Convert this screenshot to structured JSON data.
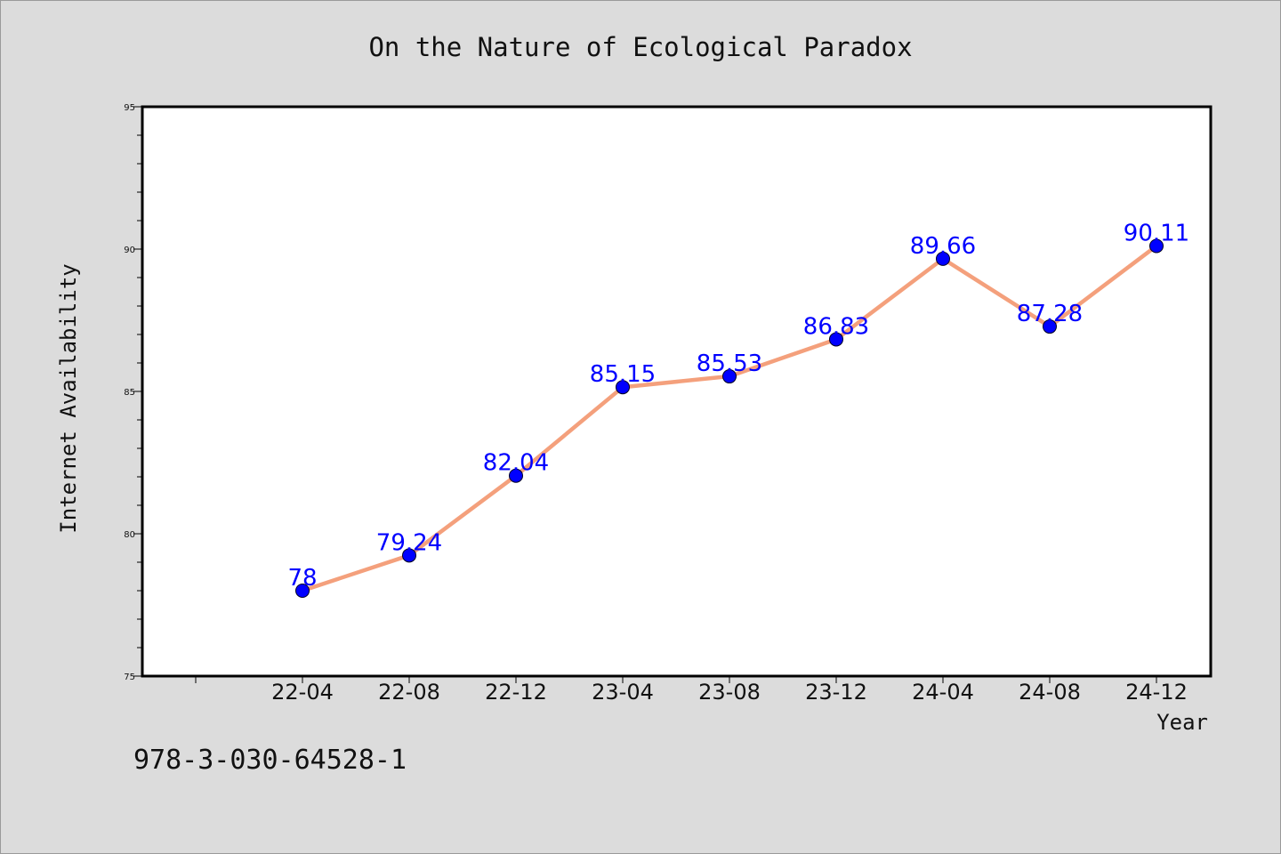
{
  "chart_data": {
    "type": "line",
    "title": "On the Nature of Ecological Paradox",
    "xlabel": "Year",
    "ylabel": "Internet Availability",
    "categories": [
      "22-04",
      "22-08",
      "22-12",
      "23-04",
      "23-08",
      "23-12",
      "24-04",
      "24-08",
      "24-12"
    ],
    "series": [
      {
        "values": [
          78,
          79.24,
          82.04,
          85.15,
          85.53,
          86.83,
          89.66,
          87.28,
          90.11
        ],
        "labels": [
          "78",
          "79.24",
          "82.04",
          "85.15",
          "85.53",
          "86.83",
          "89.66",
          "87.28",
          "90.11"
        ],
        "line_color": "#f4a07c",
        "marker_color": "#0000ff"
      }
    ],
    "ylim": [
      75,
      95
    ],
    "yticks": [
      "75",
      "80",
      "85",
      "90",
      "95"
    ],
    "yticks_values": [
      75,
      80,
      85,
      90,
      95
    ],
    "grid": false,
    "legend": "none"
  },
  "footnote": "978-3-030-64528-1"
}
